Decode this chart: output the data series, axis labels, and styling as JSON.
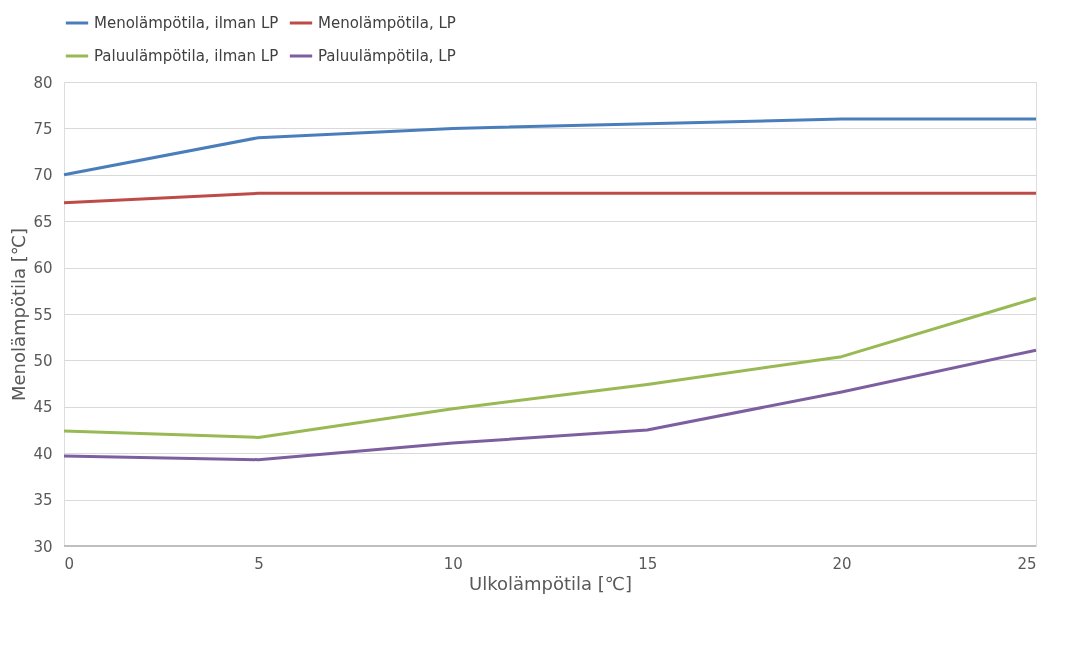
{
  "chart_data": {
    "type": "line",
    "xlabel": "Ulkolämpötila [℃]",
    "ylabel": "Menolämpötila [℃]",
    "x": [
      0,
      5,
      10,
      15,
      20,
      25
    ],
    "series": [
      {
        "name": "Menolämpötila, ilman LP",
        "color": "#4a7ebb",
        "values": [
          70,
          74,
          75,
          75.5,
          76,
          76
        ]
      },
      {
        "name": "Menolämpötila, LP",
        "color": "#be4b48",
        "values": [
          67,
          68,
          68,
          68,
          68,
          68
        ]
      },
      {
        "name": "Paluulämpötila, ilman LP",
        "color": "#98b954",
        "values": [
          42.4,
          41.7,
          44.8,
          47.4,
          50.4,
          56.7
        ]
      },
      {
        "name": "Paluulämpötila, LP",
        "color": "#7d5fa0",
        "values": [
          39.7,
          39.3,
          41.1,
          42.5,
          46.6,
          51.1
        ]
      }
    ],
    "xlim": [
      0,
      25
    ],
    "xticks": [
      0,
      5,
      10,
      15,
      20,
      25
    ],
    "ylim": [
      30,
      80
    ],
    "yticks": [
      30,
      35,
      40,
      45,
      50,
      55,
      60,
      65,
      70,
      75,
      80
    ],
    "grid": "y",
    "legend": "top",
    "marker": "none",
    "line_style": "solid"
  }
}
